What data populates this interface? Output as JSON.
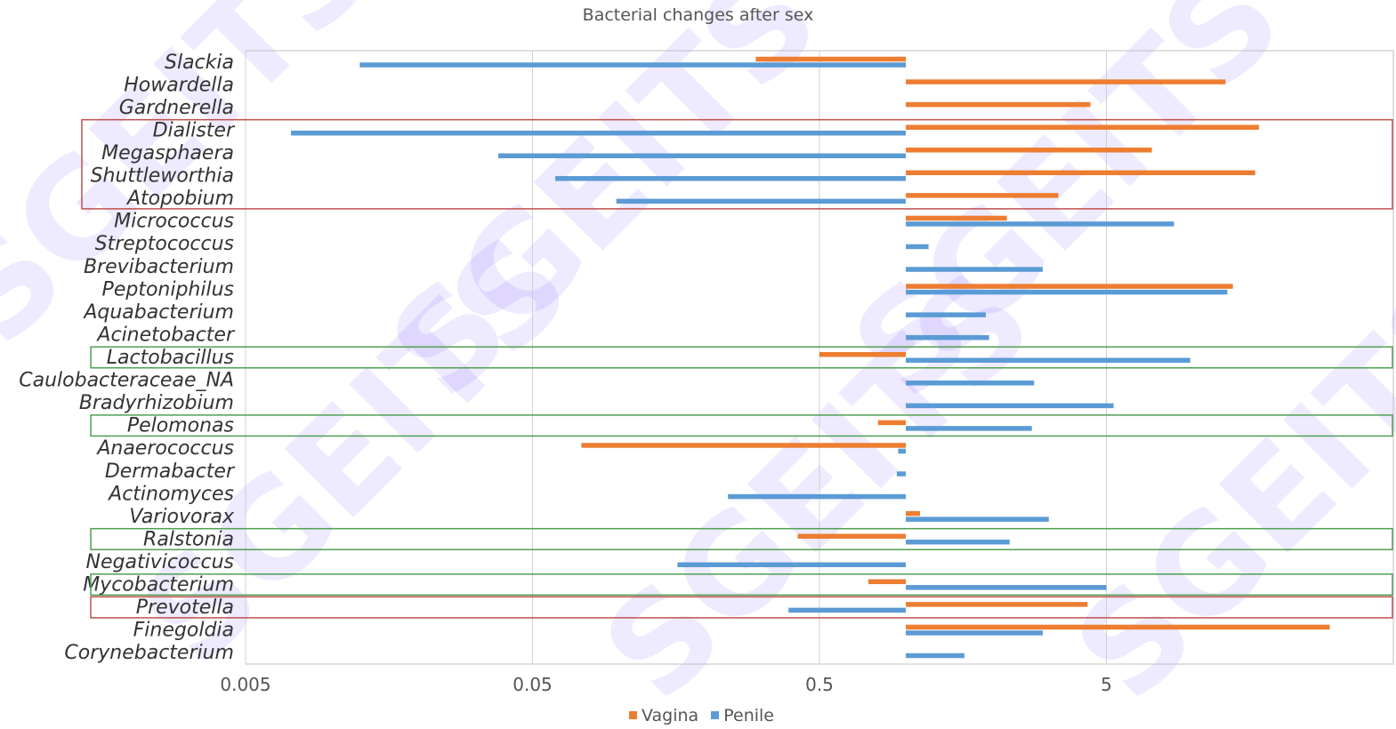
{
  "chart_data": {
    "type": "bar",
    "orientation": "horizontal",
    "title": "Bacterial changes after sex",
    "xscale": "log",
    "xlim": [
      0.005,
      50
    ],
    "baseline": 1,
    "xticks": [
      "0.005",
      "0.05",
      "0.5",
      "5"
    ],
    "grid": true,
    "legend_position": "bottom",
    "categories": [
      "Slackia",
      "Howardella",
      "Gardnerella",
      "Dialister",
      "Megasphaera",
      "Shuttleworthia",
      "Atopobium",
      "Micrococcus",
      "Streptococcus",
      "Brevibacterium",
      "Peptoniphilus",
      "Aquabacterium",
      "Acinetobacter",
      "Lactobacillus",
      "Caulobacteraceae_NA",
      "Bradyrhizobium",
      "Pelomonas",
      "Anaerococcus",
      "Dermabacter",
      "Actinomyces",
      "Variovorax",
      "Ralstonia",
      "Negativicoccus",
      "Mycobacterium",
      "Prevotella",
      "Finegoldia",
      "Corynebacterium"
    ],
    "series": [
      {
        "name": "Vagina",
        "color": "#ed7d31",
        "values": [
          0.3,
          13,
          4.4,
          17,
          7.2,
          16.5,
          3.4,
          2.25,
          null,
          null,
          13.8,
          null,
          null,
          0.5,
          null,
          null,
          0.8,
          0.074,
          null,
          null,
          1.12,
          0.42,
          null,
          0.74,
          4.3,
          30,
          null
        ]
      },
      {
        "name": "Penile",
        "color": "#5b9bd5",
        "values": [
          0.0125,
          null,
          null,
          0.0072,
          0.038,
          0.06,
          0.098,
          8.6,
          1.2,
          3.0,
          13.2,
          1.9,
          1.95,
          9.8,
          2.8,
          5.3,
          2.75,
          0.94,
          0.93,
          0.24,
          3.15,
          2.3,
          0.16,
          5.0,
          0.39,
          3.0,
          1.6
        ]
      }
    ],
    "highlight_boxes": [
      {
        "color": "#c0504d",
        "from": "Dialister",
        "to": "Atopobium"
      },
      {
        "color": "#4f9f52",
        "from": "Lactobacillus",
        "to": "Lactobacillus"
      },
      {
        "color": "#4f9f52",
        "from": "Pelomonas",
        "to": "Pelomonas"
      },
      {
        "color": "#4f9f52",
        "from": "Ralstonia",
        "to": "Ralstonia"
      },
      {
        "color": "#4f9f52",
        "from": "Mycobacterium",
        "to": "Mycobacterium"
      },
      {
        "color": "#c0504d",
        "from": "Prevotella",
        "to": "Prevotella"
      }
    ]
  },
  "watermark": "SGEITS"
}
